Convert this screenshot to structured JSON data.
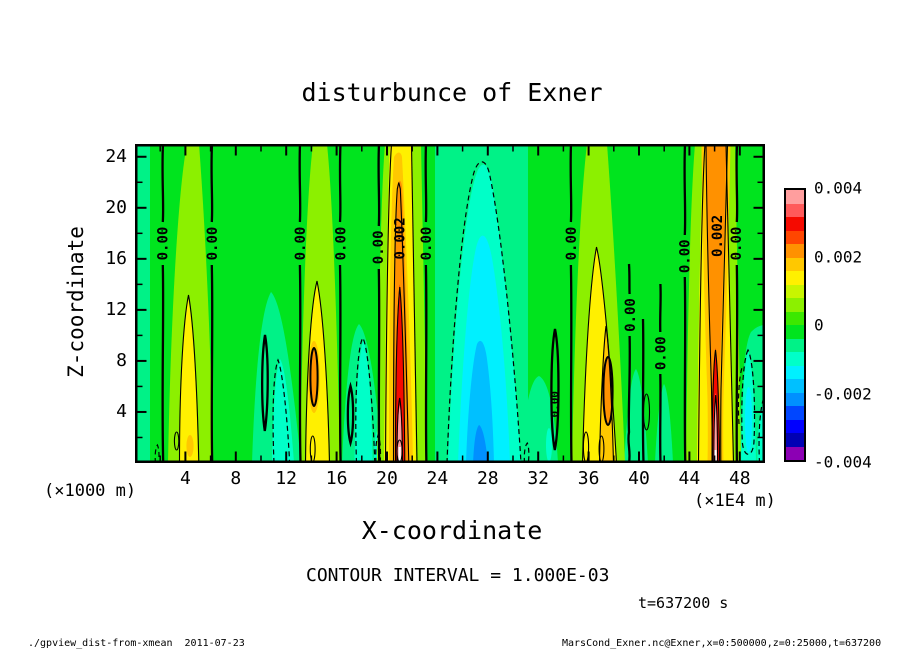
{
  "title": "disturbunce of Exner",
  "annotations": {
    "contour_interval": "CONTOUR INTERVAL = 1.000E-03",
    "time": "t=637200 s"
  },
  "footer": {
    "left": "./gpview_dist-from-xmean  2011-07-23",
    "right": "MarsCond_Exner.nc@Exner,x=0:500000,z=0:25000,t=637200"
  },
  "axes": {
    "x": {
      "label": "X-coordinate",
      "unit": "(×1E4 m)",
      "range": [
        0,
        50
      ],
      "major_ticks": [
        4,
        8,
        12,
        16,
        20,
        24,
        28,
        32,
        36,
        40,
        44,
        48
      ],
      "minor_step": 2
    },
    "y": {
      "label": "Z-coordinate",
      "unit": "(×1000 m)",
      "range": [
        0,
        25
      ],
      "major_ticks": [
        4,
        8,
        12,
        16,
        20,
        24
      ],
      "minor_step": 2
    }
  },
  "colorbar": {
    "labels": [
      "0.004",
      "0.002",
      "0",
      "-0.002",
      "-0.004"
    ],
    "colors": [
      "#ff9e9e",
      "#ff5a5a",
      "#f50a00",
      "#ff4600",
      "#ff9100",
      "#ffc800",
      "#fff000",
      "#c8f500",
      "#8cf000",
      "#3ce800",
      "#00e41e",
      "#00f287",
      "#00ffc8",
      "#00f0ff",
      "#00c0ff",
      "#0090ff",
      "#0046ff",
      "#0000ff",
      "#0000b4",
      "#8c00b4"
    ]
  },
  "palette": {
    "green": "#00e41e",
    "mint": "#00f287",
    "aqua": "#00ffc8",
    "cyan": "#00f0ff",
    "sky": "#00c0ff",
    "blue": "#0090ff",
    "chartreuse": "#8cf000",
    "yellow": "#fff000",
    "amber": "#ffc800",
    "orange": "#ff9100",
    "red": "#f50a00",
    "pink": "#ff9e9e",
    "white": "#ffffff"
  },
  "plot": {
    "contour_labels": [
      {
        "text": "0.00",
        "x": 2.2,
        "z": 17.2
      },
      {
        "text": "0.00",
        "x": 6.1,
        "z": 17.2
      },
      {
        "text": "0.00",
        "x": 13.1,
        "z": 17.2
      },
      {
        "text": "0.00",
        "x": 16.3,
        "z": 17.2
      },
      {
        "text": "0.00",
        "x": 19.3,
        "z": 16.9
      },
      {
        "text": "0.002",
        "x": 21.0,
        "z": 17.6
      },
      {
        "text": "0.00",
        "x": 23.1,
        "z": 17.2
      },
      {
        "text": "0.00",
        "x": 33.3,
        "z": 4.6,
        "size": 11
      },
      {
        "text": "0.00",
        "x": 34.6,
        "z": 17.2
      },
      {
        "text": "0.00",
        "x": 39.3,
        "z": 11.6
      },
      {
        "text": "0.00",
        "x": 41.7,
        "z": 8.6
      },
      {
        "text": "0.00",
        "x": 43.6,
        "z": 16.2
      },
      {
        "text": "0.002",
        "x": 46.2,
        "z": 17.8
      },
      {
        "text": "0.00",
        "x": 47.7,
        "z": 17.2
      }
    ]
  },
  "chart_data": {
    "type": "filled_contour",
    "title": "disturbunce of Exner",
    "xlabel": "X-coordinate",
    "x_unit": "×1E4 m",
    "xlim": [
      0,
      50
    ],
    "x_ticks": [
      4,
      8,
      12,
      16,
      20,
      24,
      28,
      32,
      36,
      40,
      44,
      48
    ],
    "ylabel": "Z-coordinate",
    "y_unit": "×1000 m",
    "ylim": [
      0,
      25
    ],
    "y_ticks": [
      4,
      8,
      12,
      16,
      20,
      24
    ],
    "contour_interval": 0.001,
    "colorbar_ticks": [
      0.004,
      0.002,
      0,
      -0.002,
      -0.004
    ],
    "shading_range": [
      -0.004,
      0.004
    ],
    "time": "t=637200 s",
    "features": [
      {
        "kind": "positive-column",
        "x_center": 4.5,
        "peak_value": 0.0015,
        "z_extent": [
          0,
          13
        ]
      },
      {
        "kind": "positive-column",
        "x_center": 14.3,
        "peak_value": 0.0018,
        "z_extent": [
          0,
          14
        ]
      },
      {
        "kind": "positive-column",
        "x_center": 21.0,
        "peak_value": 0.004,
        "z_extent": [
          0,
          25
        ],
        "note": "red/pink core near surface"
      },
      {
        "kind": "negative-region",
        "x_range": [
          25,
          30.5
        ],
        "min_value": -0.002,
        "z_extent": [
          0,
          24
        ],
        "note": "broad cyan trough, dashed contours"
      },
      {
        "kind": "positive-column",
        "x_center": 37.0,
        "peak_value": 0.002,
        "z_extent": [
          0,
          17
        ]
      },
      {
        "kind": "positive-column",
        "x_center": 46.0,
        "peak_value": 0.004,
        "z_extent": [
          0,
          25
        ],
        "note": "red/pink core near surface"
      },
      {
        "kind": "negative-pocket",
        "x_center": 11.8,
        "z_extent": [
          0,
          8
        ]
      },
      {
        "kind": "negative-pocket",
        "x_center": 18.2,
        "z_extent": [
          0,
          9.5
        ]
      },
      {
        "kind": "negative-pocket",
        "x_center": 48.6,
        "z_extent": [
          0,
          9
        ]
      }
    ],
    "contour_line_labels": [
      "0.00",
      "0.002"
    ]
  }
}
